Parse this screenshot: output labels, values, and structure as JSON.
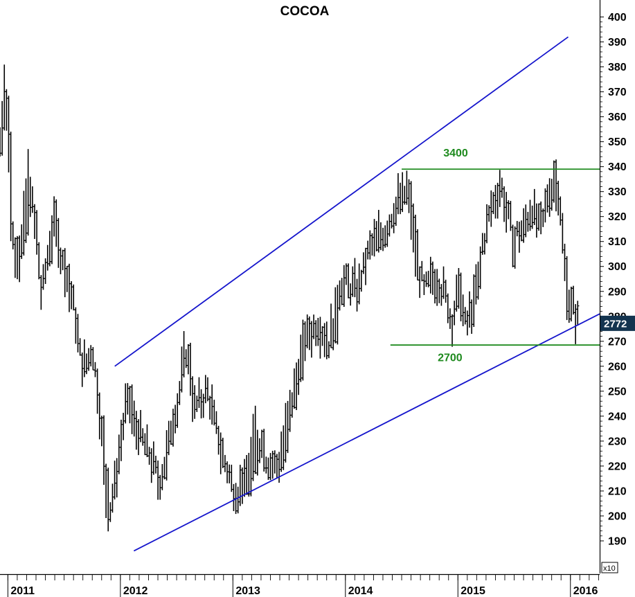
{
  "chart_data": {
    "type": "bar",
    "subtype": "ohlc-weekly",
    "title": "COCOA",
    "multiplier_label": "x10",
    "ylim": [
      180,
      400
    ],
    "y_ticks": [
      190,
      200,
      210,
      220,
      230,
      240,
      250,
      260,
      270,
      280,
      290,
      300,
      310,
      320,
      330,
      340,
      350,
      360,
      370,
      380,
      390,
      400
    ],
    "y_tick_labels": [
      "190",
      "200",
      "210",
      "220",
      "230",
      "240",
      "250",
      "260",
      "270",
      "280",
      "290",
      "300",
      "310",
      "320",
      "330",
      "340",
      "350",
      "360",
      "370",
      "380",
      "390",
      "400"
    ],
    "x_tick_labels": [
      {
        "label": "2011",
        "at": 2011.0
      },
      {
        "label": "2012",
        "at": 2012.0
      },
      {
        "label": "2013",
        "at": 2013.0
      },
      {
        "label": "2014",
        "at": 2014.0
      },
      {
        "label": "2015",
        "at": 2015.0
      },
      {
        "label": "2016",
        "at": 2016.0
      }
    ],
    "xlim": [
      2010.93,
      2016.26
    ],
    "last_price_label": "2772",
    "last_price": 277.2,
    "anchors": [
      [
        2010.93,
        350
      ],
      [
        2010.97,
        378
      ],
      [
        2011.03,
        315
      ],
      [
        2011.1,
        300
      ],
      [
        2011.18,
        340
      ],
      [
        2011.3,
        288
      ],
      [
        2011.4,
        318
      ],
      [
        2011.5,
        298
      ],
      [
        2011.6,
        280
      ],
      [
        2011.66,
        258
      ],
      [
        2011.75,
        268
      ],
      [
        2011.82,
        240
      ],
      [
        2011.88,
        198
      ],
      [
        2011.95,
        213
      ],
      [
        2012.05,
        244
      ],
      [
        2012.15,
        234
      ],
      [
        2012.25,
        226
      ],
      [
        2012.35,
        213
      ],
      [
        2012.45,
        236
      ],
      [
        2012.53,
        251
      ],
      [
        2012.58,
        268
      ],
      [
        2012.66,
        243
      ],
      [
        2012.78,
        250
      ],
      [
        2012.88,
        228
      ],
      [
        2013.0,
        212
      ],
      [
        2013.1,
        210
      ],
      [
        2013.2,
        236
      ],
      [
        2013.3,
        223
      ],
      [
        2013.4,
        219
      ],
      [
        2013.5,
        244
      ],
      [
        2013.62,
        267
      ],
      [
        2013.75,
        278
      ],
      [
        2013.85,
        270
      ],
      [
        2013.95,
        294
      ],
      [
        2014.1,
        291
      ],
      [
        2014.22,
        307
      ],
      [
        2014.35,
        315
      ],
      [
        2014.45,
        325
      ],
      [
        2014.55,
        331
      ],
      [
        2014.62,
        305
      ],
      [
        2014.7,
        290
      ],
      [
        2014.8,
        296
      ],
      [
        2014.88,
        290
      ],
      [
        2014.95,
        276
      ],
      [
        2015.0,
        294
      ],
      [
        2015.07,
        275
      ],
      [
        2015.15,
        288
      ],
      [
        2015.22,
        309
      ],
      [
        2015.3,
        324
      ],
      [
        2015.38,
        333
      ],
      [
        2015.48,
        311
      ],
      [
        2015.58,
        315
      ],
      [
        2015.66,
        325
      ],
      [
        2015.74,
        312
      ],
      [
        2015.8,
        330
      ],
      [
        2015.86,
        335
      ],
      [
        2015.92,
        318
      ],
      [
        2015.97,
        288
      ],
      [
        2016.02,
        283
      ],
      [
        2016.07,
        278
      ]
    ],
    "lines": [
      {
        "name": "upper-trendline",
        "color": "#1515cc",
        "from": [
          2011.95,
          260
        ],
        "to": [
          2015.98,
          392
        ]
      },
      {
        "name": "lower-trendline",
        "color": "#1515cc",
        "from": [
          2012.12,
          186
        ],
        "to": [
          2016.26,
          281
        ]
      },
      {
        "name": "resistance-3400",
        "color": "#1e8a1e",
        "from": [
          2014.5,
          339
        ],
        "to": [
          2016.26,
          339
        ]
      },
      {
        "name": "support-2700",
        "color": "#1e8a1e",
        "from": [
          2014.4,
          268.5
        ],
        "to": [
          2016.26,
          268.5
        ]
      }
    ],
    "annotations": [
      {
        "text": "3400",
        "x": 2014.98,
        "y": 344,
        "color": "#1e8a1e"
      },
      {
        "text": "2700",
        "x": 2014.93,
        "y": 262,
        "color": "#1e8a1e"
      }
    ],
    "colors": {
      "bars": "#000000",
      "trend": "#1515cc",
      "levels": "#1e8a1e",
      "price_tag": "#13344f"
    },
    "grid": false,
    "legend": "none"
  }
}
